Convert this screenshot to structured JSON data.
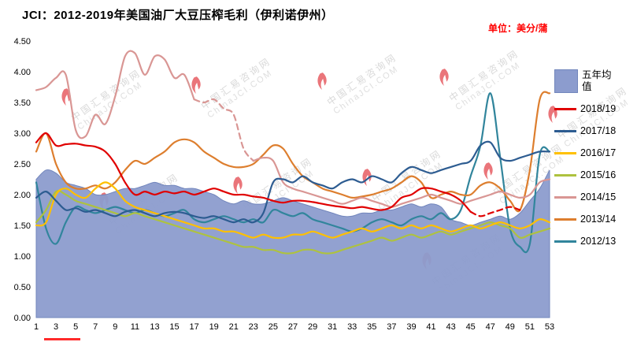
{
  "title": "JCI：2012-2019年美国油厂大豆压榨毛利（伊利诺伊州）",
  "unit_label": "单位：美分/蒲",
  "watermark": {
    "line1": "中国汇易咨询网",
    "line2": "ChinaJCI.COM"
  },
  "chart_data": {
    "type": "line",
    "title": "JCI：2012-2019年美国油厂大豆压榨毛利（伊利诺伊州）",
    "xlabel": "",
    "ylabel": "单位：美分/蒲",
    "grid": false,
    "legend_position": "right",
    "ylim": [
      0,
      4.5
    ],
    "y_ticks": [
      "4.50",
      "4.00",
      "3.50",
      "3.00",
      "2.50",
      "2.00",
      "1.50",
      "1.00",
      "0.50",
      "0.00"
    ],
    "x": [
      1,
      2,
      3,
      4,
      5,
      6,
      7,
      8,
      9,
      10,
      11,
      12,
      13,
      14,
      15,
      16,
      17,
      18,
      19,
      20,
      21,
      22,
      23,
      24,
      25,
      26,
      27,
      28,
      29,
      30,
      31,
      32,
      33,
      34,
      35,
      36,
      37,
      38,
      39,
      40,
      41,
      42,
      43,
      44,
      45,
      46,
      47,
      48,
      49,
      50,
      51,
      52,
      53
    ],
    "x_tick_labels": [
      "1",
      "3",
      "5",
      "7",
      "9",
      "11",
      "13",
      "15",
      "17",
      "19",
      "21",
      "23",
      "25",
      "27",
      "29",
      "31",
      "33",
      "35",
      "37",
      "39",
      "41",
      "43",
      "45",
      "47",
      "49",
      "51",
      "53"
    ],
    "series": [
      {
        "key": "five-year-avg",
        "name": "五年均值",
        "type": "area",
        "color": "#8c9cce",
        "values": [
          2.25,
          2.4,
          2.35,
          2.2,
          2.15,
          2.1,
          2.0,
          2.0,
          2.05,
          2.1,
          2.1,
          2.15,
          2.2,
          2.15,
          2.15,
          2.1,
          2.1,
          2.05,
          2.0,
          1.9,
          1.85,
          1.9,
          1.85,
          1.85,
          1.9,
          1.95,
          1.9,
          1.85,
          1.8,
          1.75,
          1.7,
          1.65,
          1.65,
          1.7,
          1.7,
          1.75,
          1.75,
          1.8,
          1.85,
          1.8,
          1.85,
          1.8,
          1.6,
          1.55,
          1.5,
          1.55,
          1.6,
          1.65,
          1.6,
          1.7,
          1.9,
          2.1,
          2.4
        ]
      },
      {
        "key": "2018-19",
        "name": "2018/19",
        "type": "line",
        "color": "#e00000",
        "dash_ranges": [
          [
            45,
            50
          ]
        ],
        "values": [
          2.85,
          3.0,
          2.8,
          2.82,
          2.83,
          2.8,
          2.78,
          2.7,
          2.5,
          2.2,
          2.0,
          2.05,
          2.0,
          2.05,
          2.02,
          2.05,
          2.0,
          2.05,
          2.1,
          2.05,
          2.0,
          2.0,
          1.97,
          1.95,
          1.9,
          1.87,
          1.9,
          1.9,
          1.88,
          1.85,
          1.82,
          1.8,
          1.78,
          1.8,
          1.77,
          1.75,
          1.8,
          1.95,
          2.0,
          2.1,
          2.1,
          2.05,
          2.0,
          1.9,
          1.72,
          1.65,
          1.7,
          1.75,
          1.8,
          1.75,
          null,
          null,
          null
        ]
      },
      {
        "key": "2017-18",
        "name": "2017/18",
        "type": "line",
        "color": "#2d5c91",
        "values": [
          1.95,
          2.05,
          1.9,
          1.75,
          1.78,
          1.72,
          1.75,
          1.7,
          1.65,
          1.72,
          1.75,
          1.7,
          1.65,
          1.7,
          1.72,
          1.7,
          1.65,
          1.62,
          1.65,
          1.6,
          1.55,
          1.6,
          1.55,
          1.7,
          2.2,
          2.25,
          2.2,
          2.3,
          2.2,
          2.15,
          2.1,
          2.2,
          2.25,
          2.2,
          2.3,
          2.25,
          2.2,
          2.35,
          2.45,
          2.4,
          2.35,
          2.4,
          2.45,
          2.5,
          2.55,
          2.8,
          2.85,
          2.6,
          2.55,
          2.6,
          2.65,
          2.7,
          2.7
        ]
      },
      {
        "key": "2016-17",
        "name": "2016/17",
        "type": "line",
        "color": "#ffc000",
        "values": [
          1.5,
          1.55,
          2.0,
          2.1,
          2.0,
          1.95,
          2.1,
          2.2,
          2.1,
          1.9,
          1.8,
          1.75,
          1.7,
          1.65,
          1.6,
          1.55,
          1.5,
          1.45,
          1.45,
          1.4,
          1.4,
          1.35,
          1.3,
          1.35,
          1.3,
          1.3,
          1.35,
          1.35,
          1.4,
          1.35,
          1.3,
          1.35,
          1.4,
          1.45,
          1.4,
          1.45,
          1.5,
          1.45,
          1.5,
          1.45,
          1.5,
          1.45,
          1.4,
          1.45,
          1.5,
          1.45,
          1.5,
          1.55,
          1.5,
          1.45,
          1.5,
          1.6,
          1.55
        ]
      },
      {
        "key": "2015-16",
        "name": "2015/16",
        "type": "line",
        "color": "#aec23f",
        "values": [
          1.55,
          1.75,
          2.05,
          2.0,
          1.9,
          1.85,
          1.8,
          1.75,
          1.7,
          1.65,
          1.7,
          1.65,
          1.6,
          1.55,
          1.5,
          1.45,
          1.4,
          1.35,
          1.3,
          1.25,
          1.2,
          1.15,
          1.15,
          1.1,
          1.1,
          1.05,
          1.05,
          1.1,
          1.1,
          1.05,
          1.05,
          1.1,
          1.15,
          1.2,
          1.25,
          1.3,
          1.25,
          1.3,
          1.35,
          1.3,
          1.35,
          1.4,
          1.35,
          1.4,
          1.45,
          1.5,
          1.55,
          1.5,
          1.45,
          1.3,
          1.35,
          1.4,
          1.45
        ]
      },
      {
        "key": "2014-15",
        "name": "2014/15",
        "type": "line",
        "color": "#d99694",
        "dash_ranges": [
          [
            17,
            23
          ]
        ],
        "values": [
          3.7,
          3.75,
          3.9,
          3.95,
          3.05,
          2.95,
          3.3,
          3.15,
          3.6,
          4.25,
          4.3,
          3.95,
          4.25,
          4.2,
          3.9,
          3.95,
          3.55,
          3.5,
          3.55,
          3.4,
          3.3,
          2.75,
          2.55,
          2.6,
          2.55,
          2.2,
          2.1,
          2.05,
          2.0,
          1.95,
          1.9,
          1.85,
          1.9,
          1.95,
          1.9,
          1.85,
          1.8,
          1.85,
          1.9,
          1.95,
          2.0,
          1.95,
          1.9,
          1.85,
          1.9,
          1.95,
          2.0,
          2.05,
          2.0,
          1.95,
          2.0,
          2.2,
          2.25
        ]
      },
      {
        "key": "2013-14",
        "name": "2013/14",
        "type": "line",
        "color": "#dd7e2e",
        "values": [
          2.7,
          3.0,
          2.5,
          2.2,
          2.1,
          2.1,
          2.15,
          2.1,
          2.2,
          2.4,
          2.55,
          2.5,
          2.6,
          2.7,
          2.85,
          2.9,
          2.85,
          2.7,
          2.6,
          2.5,
          2.45,
          2.45,
          2.5,
          2.65,
          2.8,
          2.75,
          2.5,
          2.3,
          2.2,
          2.1,
          2.05,
          2.0,
          1.95,
          1.97,
          2.0,
          2.05,
          2.1,
          2.2,
          2.3,
          2.2,
          1.95,
          2.0,
          2.05,
          2.0,
          2.0,
          2.15,
          2.2,
          2.1,
          1.9,
          1.75,
          2.4,
          3.55,
          3.65
        ]
      },
      {
        "key": "2012-13",
        "name": "2012/13",
        "type": "line",
        "color": "#31859c",
        "values": [
          2.2,
          1.45,
          1.2,
          1.55,
          1.8,
          1.75,
          1.7,
          1.75,
          1.8,
          1.75,
          1.7,
          1.75,
          1.7,
          1.65,
          1.7,
          1.75,
          1.6,
          1.55,
          1.6,
          1.65,
          1.6,
          1.55,
          1.6,
          1.55,
          1.75,
          1.7,
          1.65,
          1.7,
          1.6,
          1.55,
          1.5,
          1.45,
          1.4,
          1.45,
          1.55,
          1.6,
          1.55,
          1.5,
          1.6,
          1.65,
          1.6,
          1.7,
          1.6,
          1.75,
          2.3,
          2.8,
          3.65,
          2.6,
          1.45,
          1.15,
          1.2,
          2.65,
          2.7
        ]
      }
    ]
  }
}
